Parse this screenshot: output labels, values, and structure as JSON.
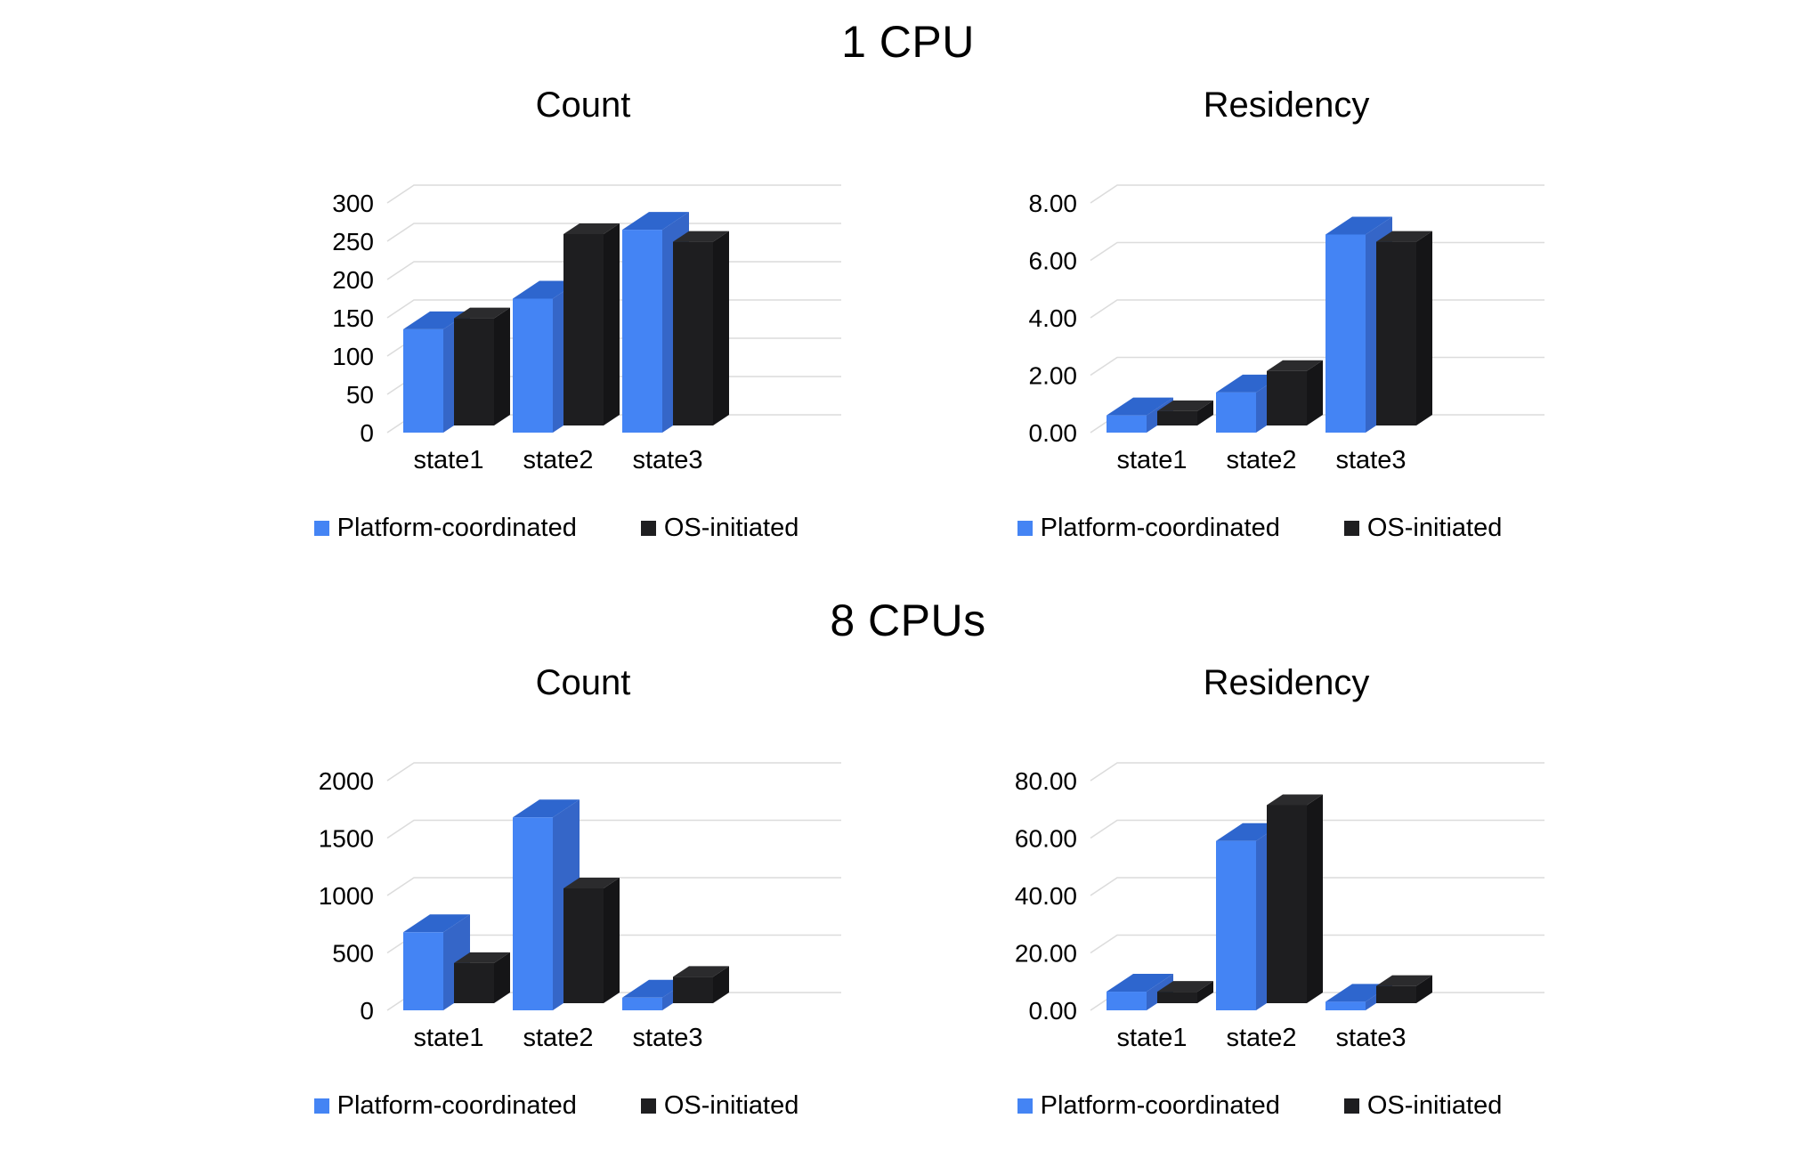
{
  "page": {
    "background": "#ffffff",
    "text_color": "#000000",
    "grid_color": "#dcdcdc"
  },
  "sections": [
    {
      "title": "1 CPU",
      "chart_indexes": [
        0,
        1
      ]
    },
    {
      "title": "8 CPUs",
      "chart_indexes": [
        2,
        3
      ]
    }
  ],
  "legend": {
    "items": [
      {
        "label": "Platform-coordinated",
        "color": "#4484f4"
      },
      {
        "label": "OS-initiated",
        "color": "#1e1e20"
      }
    ]
  },
  "series_styles": [
    {
      "front": "#4484f4",
      "top": "#2e66ce",
      "side": "#3566c8"
    },
    {
      "front": "#1e1e20",
      "top": "#2b2b2d",
      "side": "#151517"
    }
  ],
  "chart_data": [
    {
      "type": "bar",
      "style": "3d-column",
      "group": "1 CPU",
      "title": "Count",
      "categories": [
        "state1",
        "state2",
        "state3"
      ],
      "series": [
        {
          "name": "Platform-coordinated",
          "values": [
            135,
            175,
            265
          ]
        },
        {
          "name": "OS-initiated",
          "values": [
            140,
            250,
            240
          ]
        }
      ],
      "ylim": [
        0,
        300
      ],
      "y_ticks": [
        0,
        50,
        100,
        150,
        200,
        250,
        300
      ],
      "y_tick_labels": [
        "0",
        "50",
        "100",
        "150",
        "200",
        "250",
        "300"
      ],
      "grid": true,
      "legend_position": "bottom"
    },
    {
      "type": "bar",
      "style": "3d-column",
      "group": "1 CPU",
      "title": "Residency",
      "categories": [
        "state1",
        "state2",
        "state3"
      ],
      "series": [
        {
          "name": "Platform-coordinated",
          "values": [
            0.6,
            1.4,
            6.9
          ]
        },
        {
          "name": "OS-initiated",
          "values": [
            0.5,
            1.9,
            6.4
          ]
        }
      ],
      "ylim": [
        0,
        8
      ],
      "y_ticks": [
        0,
        2,
        4,
        6,
        8
      ],
      "y_tick_labels": [
        "0.00",
        "2.00",
        "4.00",
        "6.00",
        "8.00"
      ],
      "grid": true,
      "legend_position": "bottom"
    },
    {
      "type": "bar",
      "style": "3d-column",
      "group": "8 CPUs",
      "title": "Count",
      "categories": [
        "state1",
        "state2",
        "state3"
      ],
      "series": [
        {
          "name": "Platform-coordinated",
          "values": [
            680,
            1680,
            110
          ]
        },
        {
          "name": "OS-initiated",
          "values": [
            350,
            1000,
            230
          ]
        }
      ],
      "ylim": [
        0,
        2000
      ],
      "y_ticks": [
        0,
        500,
        1000,
        1500,
        2000
      ],
      "y_tick_labels": [
        "0",
        "500",
        "1000",
        "1500",
        "2000"
      ],
      "grid": true,
      "legend_position": "bottom"
    },
    {
      "type": "bar",
      "style": "3d-column",
      "group": "8 CPUs",
      "title": "Residency",
      "categories": [
        "state1",
        "state2",
        "state3"
      ],
      "series": [
        {
          "name": "Platform-coordinated",
          "values": [
            6.5,
            59,
            3
          ]
        },
        {
          "name": "OS-initiated",
          "values": [
            4,
            69,
            6
          ]
        }
      ],
      "ylim": [
        0,
        80
      ],
      "y_ticks": [
        0,
        20,
        40,
        60,
        80
      ],
      "y_tick_labels": [
        "0.00",
        "20.00",
        "40.00",
        "60.00",
        "80.00"
      ],
      "grid": true,
      "legend_position": "bottom"
    }
  ]
}
